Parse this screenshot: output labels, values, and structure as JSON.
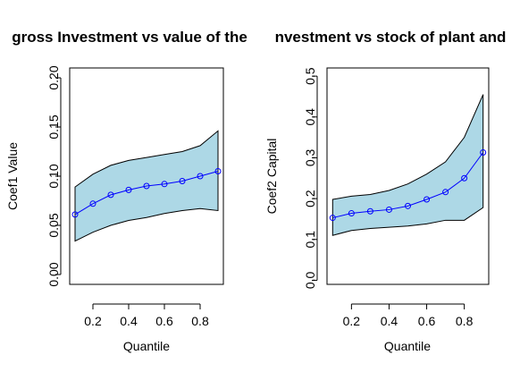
{
  "colors": {
    "band_fill": "#add8e6",
    "line": "#0000ff",
    "frame": "#000000"
  },
  "chart_data": [
    {
      "type": "line",
      "title": "gross Investment vs value of the",
      "xlabel": "Quantile",
      "ylabel": "Coef1 Value",
      "xlim": [
        0.07,
        0.93
      ],
      "ylim": [
        -0.01,
        0.21
      ],
      "xticks": [
        0.2,
        0.4,
        0.6,
        0.8
      ],
      "xtick_labels": [
        "0.2",
        "0.4",
        "0.6",
        "0.8"
      ],
      "yticks": [
        0.0,
        0.05,
        0.1,
        0.15,
        0.2
      ],
      "ytick_labels": [
        "0.00",
        "0.05",
        "0.10",
        "0.15",
        "0.20"
      ],
      "x": [
        0.1,
        0.2,
        0.3,
        0.4,
        0.5,
        0.6,
        0.7,
        0.8,
        0.9
      ],
      "series": [
        {
          "values": [
            0.061,
            0.072,
            0.081,
            0.086,
            0.09,
            0.092,
            0.095,
            0.1,
            0.105
          ]
        }
      ],
      "band_upper": [
        0.089,
        0.102,
        0.111,
        0.116,
        0.119,
        0.122,
        0.125,
        0.131,
        0.146
      ],
      "band_lower": [
        0.034,
        0.043,
        0.05,
        0.055,
        0.058,
        0.062,
        0.065,
        0.067,
        0.065
      ],
      "grid": false
    },
    {
      "type": "line",
      "title": "nvestment vs stock of plant and",
      "xlabel": "Quantile",
      "ylabel": "Coef2 Capital",
      "xlim": [
        0.07,
        0.93
      ],
      "ylim": [
        -0.01,
        0.52
      ],
      "xticks": [
        0.2,
        0.4,
        0.6,
        0.8
      ],
      "xtick_labels": [
        "0.2",
        "0.4",
        "0.6",
        "0.8"
      ],
      "yticks": [
        0.0,
        0.1,
        0.2,
        0.3,
        0.4,
        0.5
      ],
      "ytick_labels": [
        "0.0",
        "0.1",
        "0.2",
        "0.3",
        "0.4",
        "0.5"
      ],
      "x": [
        0.1,
        0.2,
        0.3,
        0.4,
        0.5,
        0.6,
        0.7,
        0.8,
        0.9
      ],
      "series": [
        {
          "values": [
            0.153,
            0.164,
            0.169,
            0.173,
            0.182,
            0.198,
            0.216,
            0.25,
            0.313
          ]
        }
      ],
      "band_upper": [
        0.198,
        0.206,
        0.21,
        0.22,
        0.236,
        0.26,
        0.29,
        0.35,
        0.455
      ],
      "band_lower": [
        0.11,
        0.122,
        0.127,
        0.13,
        0.133,
        0.138,
        0.147,
        0.147,
        0.178
      ],
      "grid": false
    }
  ]
}
